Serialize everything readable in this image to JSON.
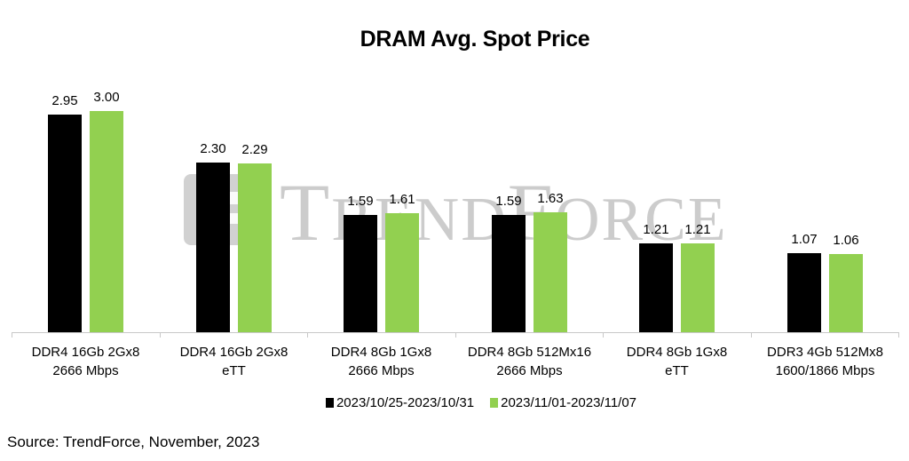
{
  "chart_data": {
    "type": "bar",
    "title": "DRAM Avg. Spot Price",
    "xlabel": "",
    "ylabel": "",
    "ylim": [
      0,
      3.2
    ],
    "grid": false,
    "legend_position": "bottom",
    "categories": [
      "DDR4 16Gb 2Gx8 2666 Mbps",
      "DDR4 16Gb 2Gx8 eTT",
      "DDR4 8Gb 1Gx8 2666 Mbps",
      "DDR4 8Gb 512Mx16 2666 Mbps",
      "DDR4 8Gb 1Gx8 eTT",
      "DDR3 4Gb 512Mx8 1600/1866 Mbps"
    ],
    "series": [
      {
        "name": "2023/10/25-2023/10/31",
        "color": "#000000",
        "values": [
          2.95,
          2.3,
          1.59,
          1.59,
          1.21,
          1.07
        ]
      },
      {
        "name": "2023/11/01-2023/11/07",
        "color": "#92d050",
        "values": [
          3.0,
          2.29,
          1.61,
          1.63,
          1.21,
          1.06
        ]
      }
    ],
    "data_labels": true
  },
  "title": "DRAM Avg. Spot Price",
  "categories": [
    {
      "line1": "DDR4 16Gb 2Gx8",
      "line2": "2666 Mbps"
    },
    {
      "line1": "DDR4 16Gb 2Gx8",
      "line2": "eTT"
    },
    {
      "line1": "DDR4 8Gb 1Gx8",
      "line2": "2666 Mbps"
    },
    {
      "line1": "DDR4 8Gb 512Mx16",
      "line2": "2666 Mbps"
    },
    {
      "line1": "DDR4 8Gb 1Gx8",
      "line2": "eTT"
    },
    {
      "line1": "DDR3 4Gb 512Mx8",
      "line2": "1600/1866 Mbps"
    }
  ],
  "labels": {
    "s0": [
      "2.95",
      "2.30",
      "1.59",
      "1.59",
      "1.21",
      "1.07"
    ],
    "s1": [
      "3.00",
      "2.29",
      "1.61",
      "1.63",
      "1.21",
      "1.06"
    ]
  },
  "legend": [
    {
      "label": "2023/10/25-2023/10/31",
      "color": "#000000"
    },
    {
      "label": "2023/11/01-2023/11/07",
      "color": "#92d050"
    }
  ],
  "watermark": "TrendForce",
  "source": "Source: TrendForce, November, 2023"
}
